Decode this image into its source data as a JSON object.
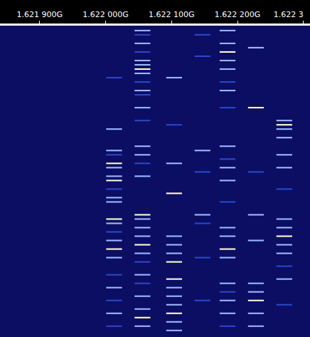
{
  "chart_data": {
    "type": "heatmap",
    "xlim": [
      1.62184,
      1.62231
    ],
    "xticks": [
      {
        "value": 1.6219,
        "label": "1.621 900G"
      },
      {
        "value": 1.622,
        "label": "1.622 000G"
      },
      {
        "value": 1.6221,
        "label": "1.622 100G"
      },
      {
        "value": 1.6222,
        "label": "1.622 200G"
      },
      {
        "value": 1.6223,
        "label": "1.622 3"
      }
    ],
    "ylim": [
      0,
      73
    ],
    "tick_labels": "x",
    "channel_width": 2.4e-05,
    "levels": [
      1,
      3
    ],
    "channels": [
      {
        "freq": 1.622013,
        "bursts": [
          [
            12,
            1
          ],
          [
            24,
            2
          ],
          [
            29,
            2
          ],
          [
            30,
            1
          ],
          [
            32,
            3
          ],
          [
            33,
            2
          ],
          [
            35,
            2
          ],
          [
            36,
            3
          ],
          [
            38,
            1
          ],
          [
            40,
            2
          ],
          [
            41,
            2
          ],
          [
            45,
            3
          ],
          [
            46,
            2
          ],
          [
            48,
            1
          ],
          [
            50,
            2
          ],
          [
            52,
            3
          ],
          [
            54,
            2
          ],
          [
            58,
            1
          ],
          [
            61,
            2
          ],
          [
            64,
            1
          ],
          [
            67,
            2
          ],
          [
            70,
            1
          ]
        ]
      },
      {
        "freq": 1.622056,
        "bursts": [
          [
            1,
            2
          ],
          [
            2,
            1
          ],
          [
            4,
            2
          ],
          [
            6,
            1
          ],
          [
            8,
            2
          ],
          [
            9,
            2
          ],
          [
            10,
            3
          ],
          [
            11,
            2
          ],
          [
            13,
            1
          ],
          [
            15,
            2
          ],
          [
            16,
            1
          ],
          [
            19,
            2
          ],
          [
            22,
            1
          ],
          [
            28,
            2
          ],
          [
            30,
            2
          ],
          [
            32,
            1
          ],
          [
            35,
            2
          ],
          [
            44,
            3
          ],
          [
            45,
            2
          ],
          [
            47,
            2
          ],
          [
            49,
            2
          ],
          [
            51,
            3
          ],
          [
            53,
            2
          ],
          [
            55,
            1
          ],
          [
            58,
            2
          ],
          [
            60,
            1
          ],
          [
            63,
            2
          ],
          [
            66,
            2
          ],
          [
            68,
            3
          ],
          [
            70,
            2
          ]
        ]
      },
      {
        "freq": 1.622104,
        "bursts": [
          [
            12,
            2
          ],
          [
            23,
            1
          ],
          [
            32,
            2
          ],
          [
            39,
            3
          ],
          [
            49,
            2
          ],
          [
            51,
            2
          ],
          [
            53,
            2
          ],
          [
            55,
            3
          ],
          [
            59,
            3
          ],
          [
            61,
            2
          ],
          [
            63,
            2
          ],
          [
            65,
            2
          ],
          [
            67,
            3
          ],
          [
            69,
            2
          ],
          [
            71,
            2
          ]
        ]
      },
      {
        "freq": 1.622147,
        "bursts": [
          [
            2,
            1
          ],
          [
            7,
            1
          ],
          [
            29,
            2
          ],
          [
            34,
            1
          ],
          [
            44,
            2
          ],
          [
            46,
            1
          ],
          [
            54,
            1
          ],
          [
            64,
            1
          ]
        ]
      },
      {
        "freq": 1.622185,
        "bursts": [
          [
            1,
            2
          ],
          [
            4,
            2
          ],
          [
            6,
            3
          ],
          [
            8,
            2
          ],
          [
            10,
            2
          ],
          [
            13,
            1
          ],
          [
            15,
            2
          ],
          [
            19,
            1
          ],
          [
            28,
            2
          ],
          [
            31,
            1
          ],
          [
            33,
            2
          ],
          [
            36,
            2
          ],
          [
            41,
            1
          ],
          [
            47,
            2
          ],
          [
            49,
            2
          ],
          [
            52,
            3
          ],
          [
            54,
            2
          ],
          [
            60,
            2
          ],
          [
            62,
            1
          ],
          [
            64,
            2
          ],
          [
            67,
            2
          ],
          [
            70,
            1
          ]
        ]
      },
      {
        "freq": 1.622228,
        "bursts": [
          [
            5,
            2
          ],
          [
            19,
            3
          ],
          [
            34,
            1
          ],
          [
            44,
            2
          ],
          [
            50,
            2
          ],
          [
            60,
            2
          ],
          [
            62,
            2
          ],
          [
            64,
            3
          ],
          [
            67,
            2
          ],
          [
            70,
            2
          ]
        ]
      },
      {
        "freq": 1.622271,
        "bursts": [
          [
            22,
            2
          ],
          [
            23,
            3
          ],
          [
            24,
            2
          ],
          [
            26,
            2
          ],
          [
            30,
            2
          ],
          [
            33,
            2
          ],
          [
            38,
            1
          ],
          [
            45,
            2
          ],
          [
            47,
            2
          ],
          [
            49,
            3
          ],
          [
            51,
            2
          ],
          [
            53,
            2
          ],
          [
            56,
            1
          ],
          [
            59,
            2
          ],
          [
            65,
            1
          ]
        ]
      }
    ]
  }
}
